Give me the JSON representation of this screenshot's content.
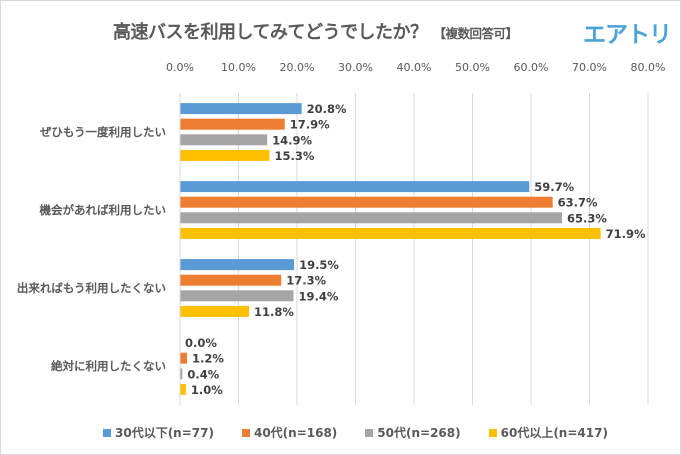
{
  "title": "高速バスを利用してみてどうでしたか？",
  "title_note": "【複数回答可】",
  "logo": "エアトリ",
  "chart_data": {
    "type": "bar",
    "orientation": "horizontal",
    "categories": [
      "ぜひもう一度利用したい",
      "機会があれば利用したい",
      "出来ればもう利用したくない",
      "絶対に利用したくない"
    ],
    "series": [
      {
        "name": "30代以下(n=77)",
        "color": "#5b9bd5",
        "values": [
          20.8,
          59.7,
          19.5,
          0.0
        ]
      },
      {
        "name": "40代(n=168)",
        "color": "#ed7d31",
        "values": [
          17.9,
          63.7,
          17.3,
          1.2
        ]
      },
      {
        "name": "50代(n=268)",
        "color": "#a5a5a5",
        "values": [
          14.9,
          65.3,
          19.4,
          0.4
        ]
      },
      {
        "name": "60代以上(n=417)",
        "color": "#ffc000",
        "values": [
          15.3,
          71.9,
          11.8,
          1.0
        ]
      }
    ],
    "xlim": [
      0,
      80
    ],
    "xticks": [
      "0.0%",
      "10.0%",
      "20.0%",
      "30.0%",
      "40.0%",
      "50.0%",
      "60.0%",
      "70.0%",
      "80.0%"
    ],
    "grid": true,
    "legend_position": "bottom"
  }
}
